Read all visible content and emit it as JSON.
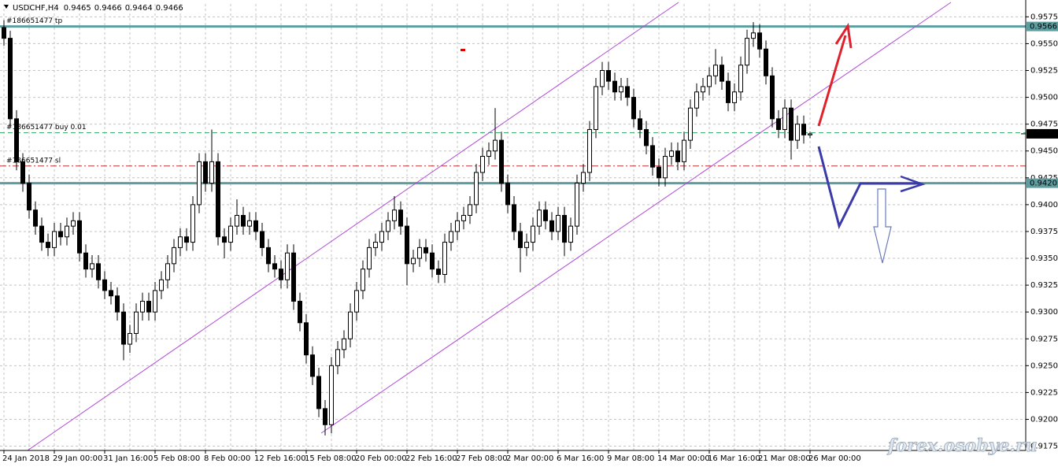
{
  "chart_data": {
    "type": "candlestick",
    "symbol": "USDCHF,H4",
    "quote": [
      0.9465,
      0.9466,
      0.9464,
      0.9466
    ],
    "categories": [
      "24 Jan 2018",
      null,
      null,
      null,
      null,
      null,
      null,
      null,
      "29 Jan 00:00",
      null,
      null,
      null,
      null,
      null,
      null,
      null,
      "31 Jan 16:00",
      null,
      null,
      null,
      null,
      null,
      null,
      null,
      "5 Feb 08:00",
      null,
      null,
      null,
      null,
      null,
      null,
      null,
      "8 Feb 00:00",
      null,
      null,
      null,
      null,
      null,
      null,
      null,
      "12 Feb 16:00",
      null,
      null,
      null,
      null,
      null,
      null,
      null,
      "15 Feb 08:00",
      null,
      null,
      null,
      null,
      null,
      null,
      null,
      "20 Feb 00:00",
      null,
      null,
      null,
      null,
      null,
      null,
      null,
      "22 Feb 16:00",
      null,
      null,
      null,
      null,
      null,
      null,
      null,
      "27 Feb 08:00",
      null,
      null,
      null,
      null,
      null,
      null,
      null,
      "2 Mar 00:00",
      null,
      null,
      null,
      null,
      null,
      null,
      null,
      "6 Mar 16:00",
      null,
      null,
      null,
      null,
      null,
      null,
      null,
      "9 Mar 08:00",
      null,
      null,
      null,
      null,
      null,
      null,
      null,
      "14 Mar 00:00",
      null,
      null,
      null,
      null,
      null,
      null,
      null,
      "16 Mar 16:00",
      null,
      null,
      null,
      null,
      null,
      null,
      null,
      "21 Mar 08:00",
      null,
      null,
      null,
      null,
      null,
      null,
      null,
      "26 Mar 00:00"
    ],
    "ohlc": [
      [
        0.9565,
        0.9572,
        0.9548,
        0.9555
      ],
      [
        0.9555,
        0.9562,
        0.9472,
        0.948
      ],
      [
        0.948,
        0.9488,
        0.9432,
        0.944
      ],
      [
        0.944,
        0.9448,
        0.9412,
        0.942
      ],
      [
        0.942,
        0.9428,
        0.9387,
        0.9395
      ],
      [
        0.9395,
        0.9403,
        0.9372,
        0.938
      ],
      [
        0.938,
        0.9388,
        0.9357,
        0.9365
      ],
      [
        0.9365,
        0.9373,
        0.9352,
        0.936
      ],
      [
        0.936,
        0.9383,
        0.9352,
        0.9375
      ],
      [
        0.9375,
        0.9383,
        0.9362,
        0.937
      ],
      [
        0.937,
        0.9388,
        0.9362,
        0.938
      ],
      [
        0.938,
        0.9393,
        0.9372,
        0.9385
      ],
      [
        0.9385,
        0.9393,
        0.9347,
        0.9355
      ],
      [
        0.9355,
        0.9363,
        0.9332,
        0.934
      ],
      [
        0.934,
        0.9353,
        0.9332,
        0.9345
      ],
      [
        0.9345,
        0.9353,
        0.9322,
        0.933
      ],
      [
        0.933,
        0.9338,
        0.9312,
        0.932
      ],
      [
        0.932,
        0.9328,
        0.9307,
        0.9315
      ],
      [
        0.9315,
        0.9323,
        0.9292,
        0.93
      ],
      [
        0.93,
        0.9308,
        0.9255,
        0.927
      ],
      [
        0.927,
        0.9288,
        0.9262,
        0.928
      ],
      [
        0.928,
        0.9308,
        0.9272,
        0.93
      ],
      [
        0.93,
        0.9318,
        0.9292,
        0.931
      ],
      [
        0.931,
        0.9318,
        0.9292,
        0.93
      ],
      [
        0.93,
        0.9328,
        0.9292,
        0.932
      ],
      [
        0.932,
        0.9338,
        0.9312,
        0.933
      ],
      [
        0.933,
        0.9353,
        0.9322,
        0.9345
      ],
      [
        0.9345,
        0.9368,
        0.9337,
        0.936
      ],
      [
        0.936,
        0.9378,
        0.9352,
        0.937
      ],
      [
        0.937,
        0.9378,
        0.9357,
        0.9365
      ],
      [
        0.9365,
        0.9408,
        0.9357,
        0.94
      ],
      [
        0.94,
        0.9448,
        0.9392,
        0.944
      ],
      [
        0.944,
        0.9448,
        0.9412,
        0.942
      ],
      [
        0.942,
        0.947,
        0.9412,
        0.944
      ],
      [
        0.944,
        0.9448,
        0.9362,
        0.937
      ],
      [
        0.937,
        0.9378,
        0.935,
        0.9365
      ],
      [
        0.9365,
        0.9388,
        0.9357,
        0.938
      ],
      [
        0.938,
        0.9405,
        0.9372,
        0.939
      ],
      [
        0.939,
        0.9398,
        0.9372,
        0.938
      ],
      [
        0.938,
        0.9393,
        0.9372,
        0.9385
      ],
      [
        0.9385,
        0.9393,
        0.9367,
        0.9375
      ],
      [
        0.9375,
        0.9383,
        0.9352,
        0.936
      ],
      [
        0.936,
        0.9368,
        0.9337,
        0.9345
      ],
      [
        0.9345,
        0.9353,
        0.9332,
        0.934
      ],
      [
        0.934,
        0.9348,
        0.9322,
        0.933
      ],
      [
        0.933,
        0.9363,
        0.9322,
        0.9355
      ],
      [
        0.9355,
        0.9363,
        0.9302,
        0.931
      ],
      [
        0.931,
        0.9318,
        0.9282,
        0.929
      ],
      [
        0.929,
        0.9298,
        0.9252,
        0.926
      ],
      [
        0.926,
        0.9268,
        0.9232,
        0.924
      ],
      [
        0.924,
        0.9248,
        0.9202,
        0.921
      ],
      [
        0.921,
        0.9218,
        0.9185,
        0.9195
      ],
      [
        0.9195,
        0.9258,
        0.9187,
        0.925
      ],
      [
        0.925,
        0.9273,
        0.9242,
        0.9265
      ],
      [
        0.9265,
        0.9283,
        0.9257,
        0.9275
      ],
      [
        0.9275,
        0.9308,
        0.9267,
        0.93
      ],
      [
        0.93,
        0.9328,
        0.9292,
        0.932
      ],
      [
        0.932,
        0.9348,
        0.9312,
        0.934
      ],
      [
        0.934,
        0.9368,
        0.9332,
        0.936
      ],
      [
        0.936,
        0.9373,
        0.9352,
        0.9365
      ],
      [
        0.9365,
        0.9383,
        0.9357,
        0.9375
      ],
      [
        0.9375,
        0.9393,
        0.9367,
        0.9385
      ],
      [
        0.9385,
        0.9408,
        0.9377,
        0.9395
      ],
      [
        0.9395,
        0.9403,
        0.9372,
        0.938
      ],
      [
        0.938,
        0.9388,
        0.9325,
        0.9345
      ],
      [
        0.9345,
        0.9358,
        0.9337,
        0.935
      ],
      [
        0.935,
        0.9368,
        0.9342,
        0.936
      ],
      [
        0.936,
        0.9368,
        0.9347,
        0.9355
      ],
      [
        0.9355,
        0.9363,
        0.9332,
        0.934
      ],
      [
        0.934,
        0.9348,
        0.9327,
        0.9335
      ],
      [
        0.9335,
        0.9373,
        0.9327,
        0.9365
      ],
      [
        0.9365,
        0.9383,
        0.9357,
        0.9375
      ],
      [
        0.9375,
        0.9393,
        0.9367,
        0.9385
      ],
      [
        0.9385,
        0.9398,
        0.9377,
        0.939
      ],
      [
        0.939,
        0.9408,
        0.9382,
        0.94
      ],
      [
        0.94,
        0.9438,
        0.9392,
        0.943
      ],
      [
        0.943,
        0.9453,
        0.9422,
        0.9445
      ],
      [
        0.9445,
        0.9458,
        0.9437,
        0.945
      ],
      [
        0.945,
        0.949,
        0.9442,
        0.946
      ],
      [
        0.946,
        0.9468,
        0.9412,
        0.942
      ],
      [
        0.942,
        0.9428,
        0.9392,
        0.94
      ],
      [
        0.94,
        0.9408,
        0.9367,
        0.9375
      ],
      [
        0.9375,
        0.9383,
        0.9337,
        0.936
      ],
      [
        0.936,
        0.9373,
        0.9352,
        0.9365
      ],
      [
        0.9365,
        0.9388,
        0.9357,
        0.938
      ],
      [
        0.938,
        0.9403,
        0.9372,
        0.9395
      ],
      [
        0.9395,
        0.9403,
        0.9377,
        0.9385
      ],
      [
        0.9385,
        0.9393,
        0.9367,
        0.9375
      ],
      [
        0.9375,
        0.9398,
        0.9367,
        0.939
      ],
      [
        0.939,
        0.9398,
        0.9352,
        0.9365
      ],
      [
        0.9365,
        0.9388,
        0.9357,
        0.938
      ],
      [
        0.938,
        0.9428,
        0.9372,
        0.942
      ],
      [
        0.942,
        0.9438,
        0.9412,
        0.943
      ],
      [
        0.943,
        0.9478,
        0.9422,
        0.947
      ],
      [
        0.947,
        0.9518,
        0.9462,
        0.951
      ],
      [
        0.951,
        0.9533,
        0.9502,
        0.9525
      ],
      [
        0.9525,
        0.9533,
        0.9507,
        0.9515
      ],
      [
        0.9515,
        0.9523,
        0.9497,
        0.9505
      ],
      [
        0.9505,
        0.9518,
        0.9497,
        0.951
      ],
      [
        0.951,
        0.9518,
        0.9492,
        0.95
      ],
      [
        0.95,
        0.9508,
        0.9472,
        0.948
      ],
      [
        0.948,
        0.9488,
        0.9462,
        0.947
      ],
      [
        0.947,
        0.9478,
        0.9447,
        0.9455
      ],
      [
        0.9455,
        0.9463,
        0.9427,
        0.9435
      ],
      [
        0.9435,
        0.9443,
        0.9417,
        0.9425
      ],
      [
        0.9425,
        0.9453,
        0.9417,
        0.9445
      ],
      [
        0.9445,
        0.9458,
        0.9437,
        0.945
      ],
      [
        0.945,
        0.9458,
        0.9432,
        0.944
      ],
      [
        0.944,
        0.9468,
        0.9432,
        0.946
      ],
      [
        0.946,
        0.9498,
        0.9452,
        0.949
      ],
      [
        0.949,
        0.9513,
        0.9482,
        0.9505
      ],
      [
        0.9505,
        0.9518,
        0.9497,
        0.951
      ],
      [
        0.951,
        0.9528,
        0.9502,
        0.952
      ],
      [
        0.952,
        0.9545,
        0.9512,
        0.953
      ],
      [
        0.953,
        0.9538,
        0.9507,
        0.9515
      ],
      [
        0.9515,
        0.9523,
        0.9487,
        0.9495
      ],
      [
        0.9495,
        0.9513,
        0.9487,
        0.9505
      ],
      [
        0.9505,
        0.9538,
        0.9497,
        0.953
      ],
      [
        0.953,
        0.9563,
        0.9522,
        0.9555
      ],
      [
        0.9555,
        0.957,
        0.9547,
        0.956
      ],
      [
        0.956,
        0.9568,
        0.9537,
        0.9545
      ],
      [
        0.9545,
        0.9553,
        0.9512,
        0.952
      ],
      [
        0.952,
        0.9528,
        0.9472,
        0.948
      ],
      [
        0.948,
        0.9488,
        0.9462,
        0.947
      ],
      [
        0.947,
        0.9498,
        0.9462,
        0.949
      ],
      [
        0.949,
        0.9498,
        0.9442,
        0.946
      ],
      [
        0.946,
        0.9483,
        0.9452,
        0.9475
      ],
      [
        0.9475,
        0.9483,
        0.9457,
        0.9465
      ],
      [
        0.9465,
        0.9468,
        0.9462,
        0.9466
      ]
    ],
    "ylim": [
      0.9171,
      0.9587
    ],
    "yticks": [
      0.9175,
      {
        "value": 0.92,
        "label": "0.9200"
      },
      0.9225,
      {
        "value": 0.925,
        "label": "0.9250"
      },
      0.9275,
      {
        "value": 0.93,
        "label": "0.9300"
      },
      0.9325,
      {
        "value": 0.935,
        "label": "0.9350"
      },
      0.9375,
      {
        "value": 0.94,
        "label": "0.9400"
      },
      0.9425,
      {
        "value": 0.945,
        "label": "0.9450"
      },
      0.9475,
      {
        "value": 0.95,
        "label": "0.9500"
      },
      0.9525,
      {
        "value": 0.955,
        "label": "0.9550"
      },
      0.9575
    ],
    "grid": true,
    "levels": [
      {
        "name": "#186651477 tp",
        "value": 0.9566,
        "color": "#5f9ea0",
        "style": "solid",
        "price_tag": true
      },
      {
        "name": "#186651477 buy 0.01",
        "value": 0.9467,
        "color": "#3cb371",
        "style": "dashed"
      },
      {
        "name": "#186651477 sl",
        "value": 0.9436,
        "color": "#c03030",
        "style": "dashdot"
      },
      {
        "value": 0.942,
        "value_label": "0.9420",
        "color": "#5f9ea0",
        "style": "solid",
        "price_tag": true
      }
    ],
    "last_price": 0.9466,
    "watermark": "forex.osobye.ru"
  }
}
